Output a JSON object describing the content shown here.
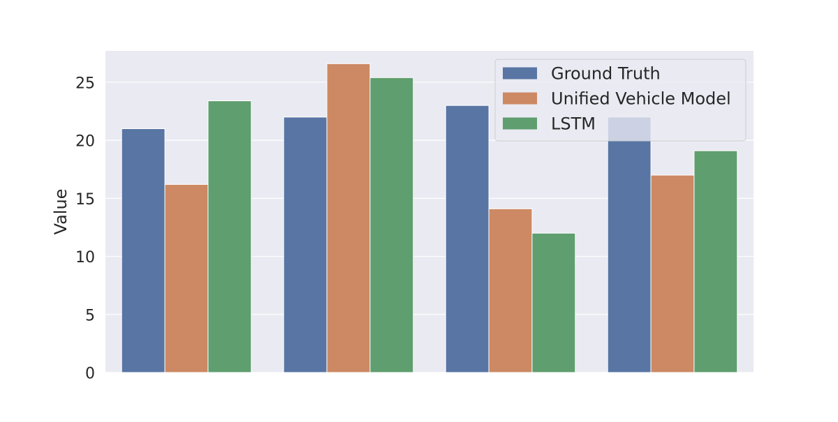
{
  "chart_data": {
    "type": "bar",
    "categories": [
      "",
      "",
      "",
      ""
    ],
    "series": [
      {
        "name": "Ground Truth",
        "values": [
          21,
          22,
          23,
          22
        ]
      },
      {
        "name": "Unified Vehicle Model",
        "values": [
          16.2,
          26.6,
          14.1,
          17.0
        ]
      },
      {
        "name": "LSTM",
        "values": [
          23.4,
          25.4,
          12.0,
          19.1
        ]
      }
    ],
    "title": "",
    "xlabel": "",
    "ylabel": "Value",
    "ylim": [
      0,
      27.7
    ],
    "yticks": [
      0,
      5,
      10,
      15,
      20,
      25
    ],
    "grid": true,
    "legend_position": "top-right"
  },
  "colors": {
    "plot_background": "#EAEAF2",
    "grid": "#FFFFFF",
    "text": "#262626",
    "series": [
      "#5875A4",
      "#CC8963",
      "#5F9E6E"
    ]
  }
}
